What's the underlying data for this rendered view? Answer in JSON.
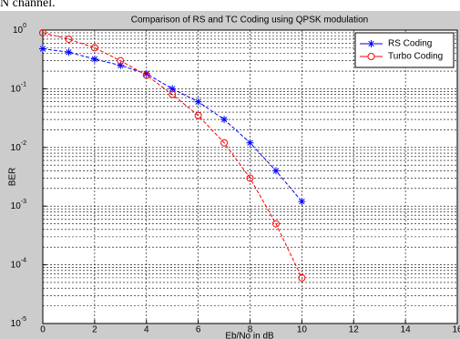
{
  "caption": "N channel.",
  "chart_data": {
    "type": "line",
    "title": "Comparison of RS and TC Coding using QPSK modulation",
    "x_label": "Eb/No in dB",
    "y_label": "BER",
    "xlim": [
      0,
      16
    ],
    "xticks": [
      0,
      2,
      4,
      6,
      8,
      10,
      12,
      14,
      16
    ],
    "ylim": [
      1e-05,
      1
    ],
    "yticks": [
      {
        "value": 1e-05,
        "label": "10",
        "exponent": "-5"
      },
      {
        "value": 0.0001,
        "label": "10",
        "exponent": "-4"
      },
      {
        "value": 0.001,
        "label": "10",
        "exponent": "-3"
      },
      {
        "value": 0.01,
        "label": "10",
        "exponent": "-2"
      },
      {
        "value": 0.1,
        "label": "10",
        "exponent": "-1"
      },
      {
        "value": 1,
        "label": "10",
        "exponent": "0"
      }
    ],
    "log_y": true,
    "grid": true,
    "legend_position": "top-right",
    "x": [
      0,
      1,
      2,
      3,
      4,
      5,
      6,
      7,
      8,
      9,
      10
    ],
    "series": [
      {
        "name": "RS Coding",
        "color": "#0000ff",
        "marker": "star",
        "values": [
          0.48,
          0.42,
          0.32,
          0.25,
          0.18,
          0.1,
          0.06,
          0.03,
          0.012,
          0.004,
          0.0012
        ]
      },
      {
        "name": "Turbo Coding",
        "color": "#ff0000",
        "marker": "circle",
        "values": [
          0.9,
          0.7,
          0.5,
          0.3,
          0.17,
          0.08,
          0.035,
          0.012,
          0.003,
          0.0005,
          6e-05
        ]
      }
    ]
  }
}
